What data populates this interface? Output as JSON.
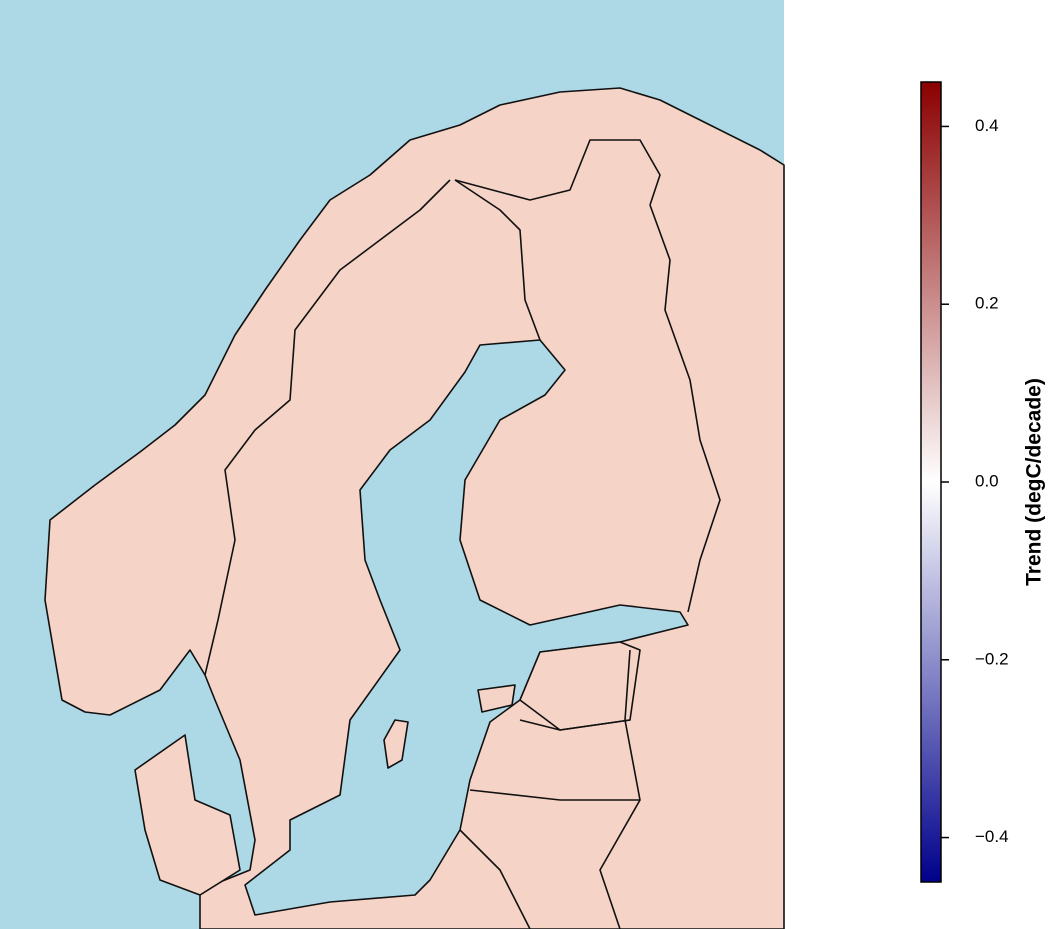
{
  "chart_data": {
    "type": "colorbar",
    "colorbar_label": "Trend (degC/decade)",
    "colormap": [
      "#00008b",
      "#ffffff",
      "#8b0000"
    ],
    "ylim": [
      -0.45,
      0.45
    ],
    "yticks": [
      0.4,
      0.2,
      {
        "value": 0,
        "label": "0.0"
      },
      {
        "value": -0.2,
        "label": "−0.2"
      },
      {
        "value": -0.4,
        "label": "−0.4"
      }
    ]
  }
}
